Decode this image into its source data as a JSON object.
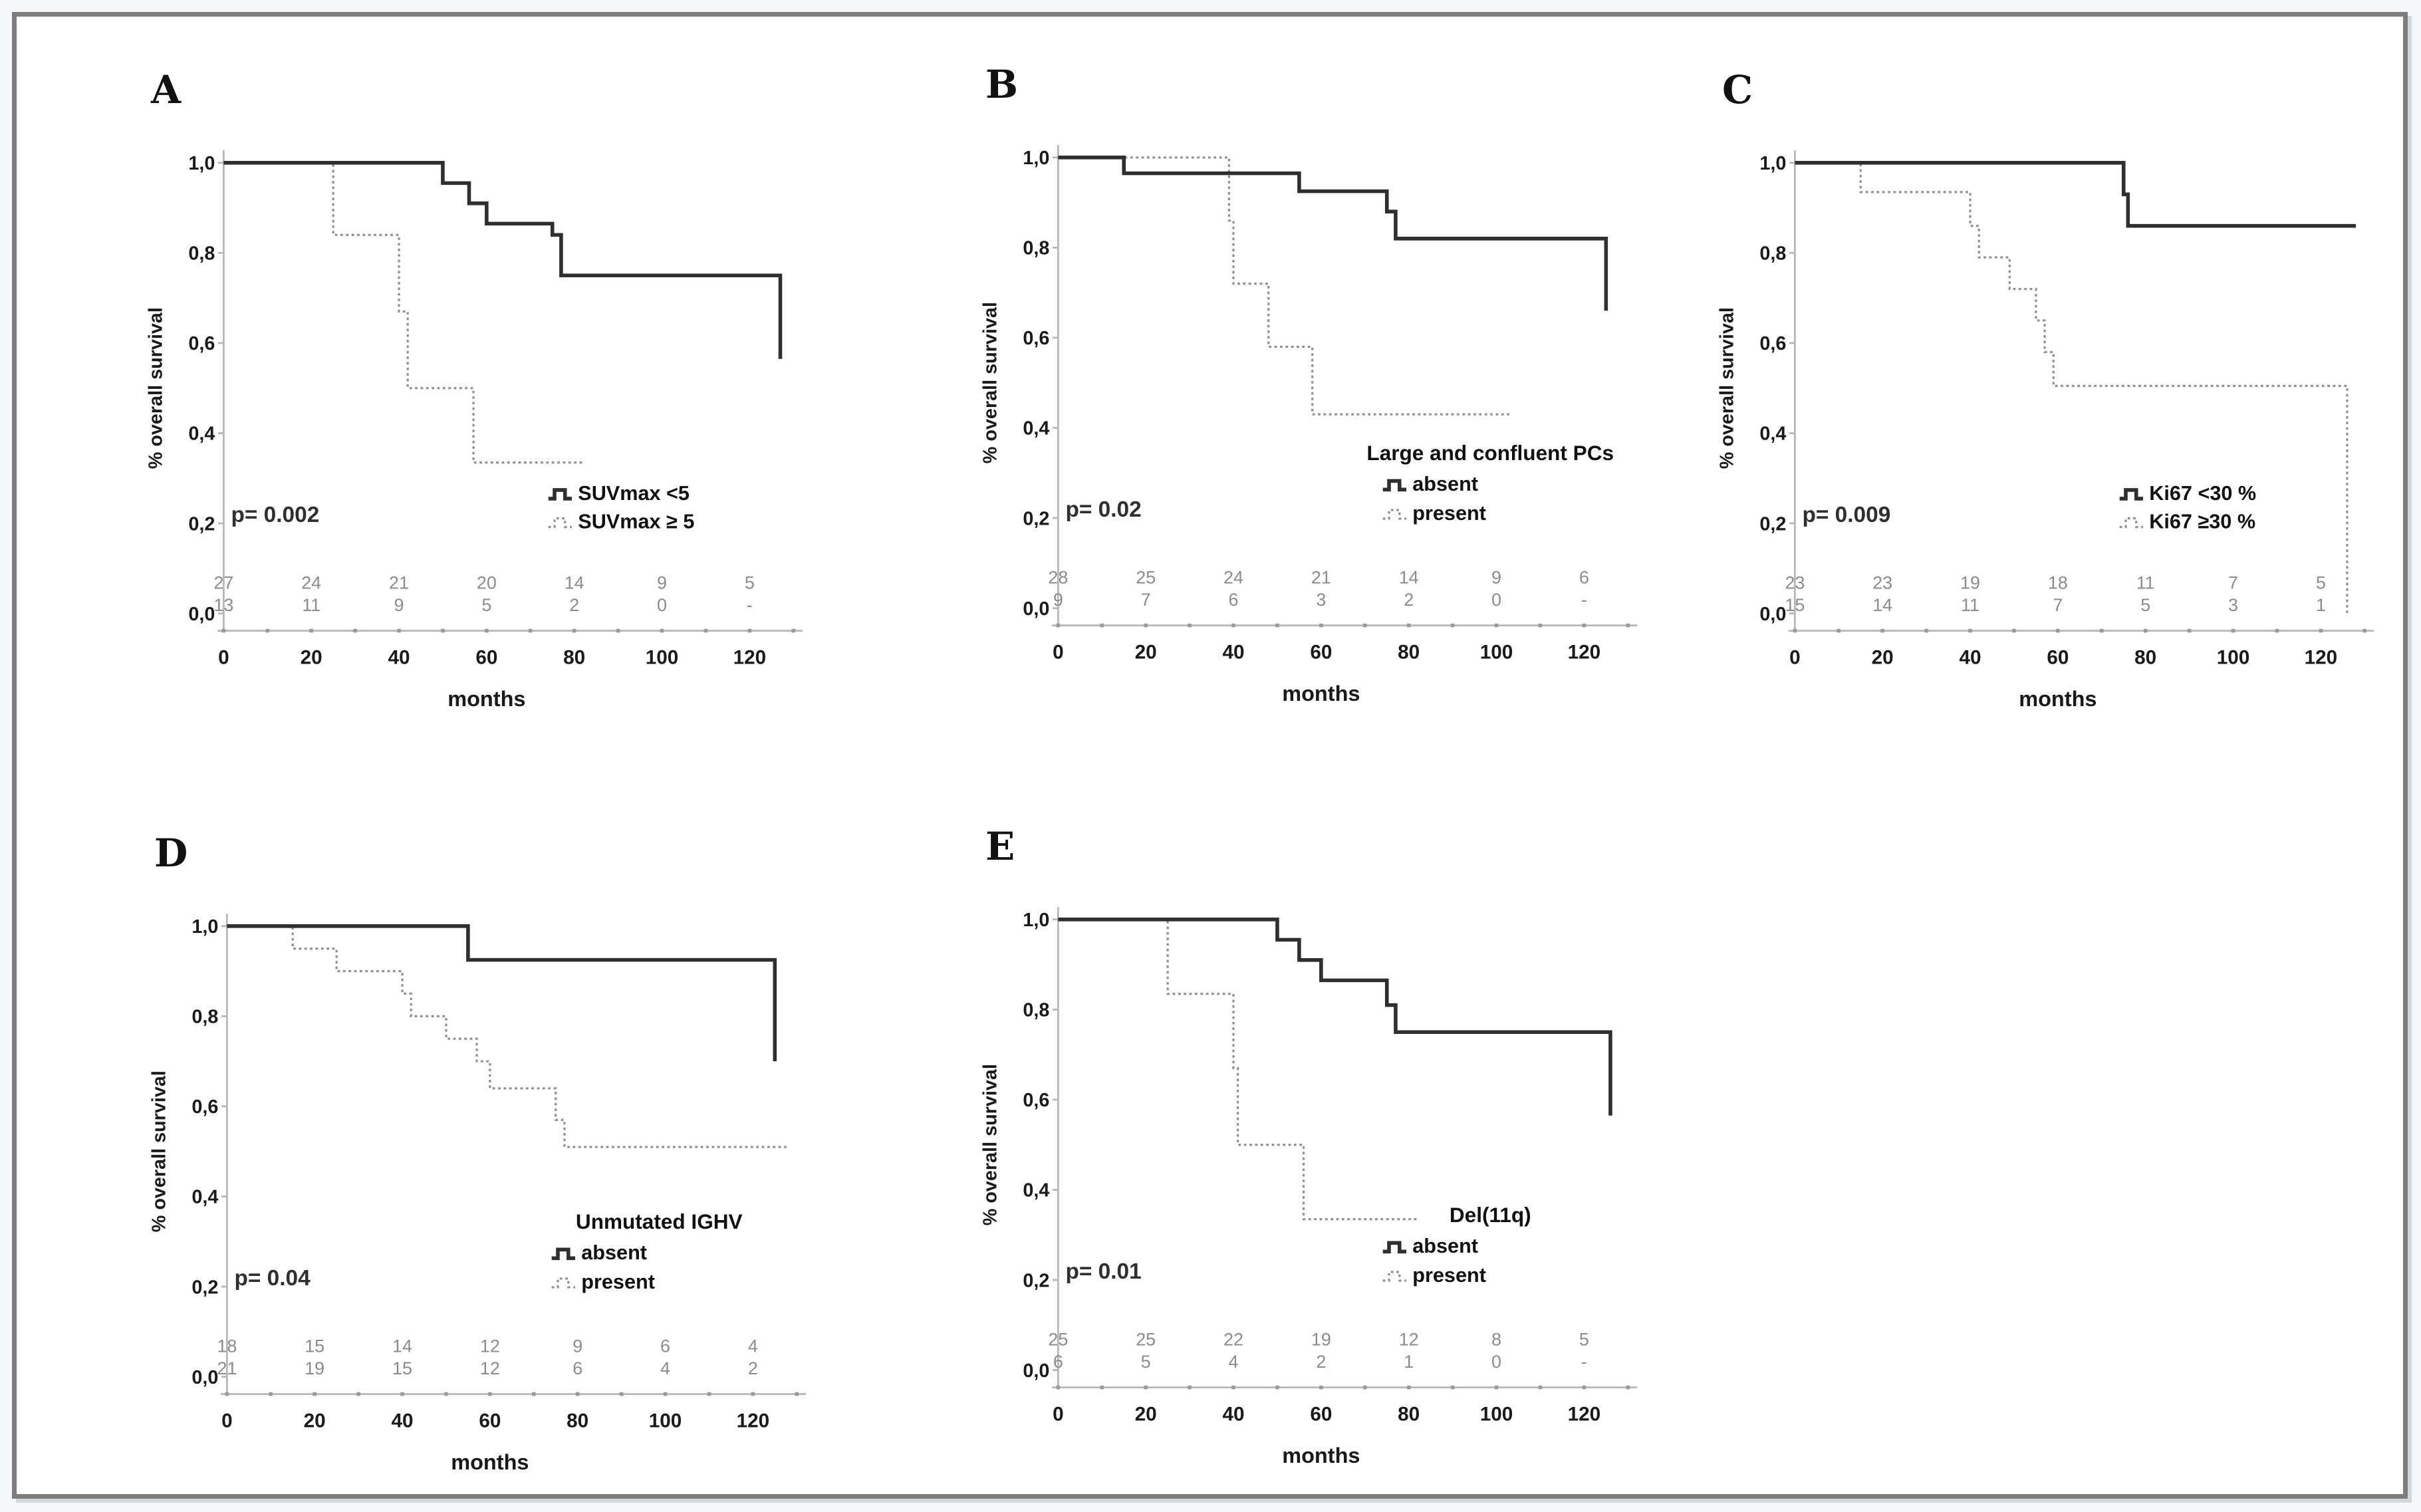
{
  "figure": {
    "description": "Five Kaplan-Meier overall survival plots labelled A to E",
    "x_axis_title": "months",
    "y_axis_title": "% overall survival"
  },
  "colors": {
    "curve_solid": "#2f2f2f",
    "curve_dotted": "#8f8f8f",
    "axis": "#b7b7b7",
    "minor_tick": "#9a9a9a",
    "tick_label": "#1a1a1a",
    "at_risk_text": "#8c8c8c",
    "p_value_text": "#2f2f2f",
    "legend_text": "#111111",
    "frame_border": "#7d7d7d",
    "page_bg": "#f5f6f8",
    "panel_bg": "#ffffff"
  },
  "chart_data": [
    {
      "id": "A",
      "type": "line",
      "subtype": "kaplan-meier-step",
      "xlabel": "months",
      "ylabel": "% overall survival",
      "xlim": [
        0,
        130
      ],
      "ylim": [
        0.0,
        1.0
      ],
      "xticks": [
        0,
        20,
        40,
        60,
        80,
        100,
        120
      ],
      "ytick_labels": [
        "1,0",
        "0,8",
        "0,6",
        "0,4",
        "0,2",
        "0,0"
      ],
      "p_value": "p= 0.002",
      "legend": {
        "title": "",
        "entries": [
          {
            "label": "SUVmax <5",
            "style": "solid"
          },
          {
            "label": "SUVmax ≥ 5",
            "style": "dotted"
          }
        ]
      },
      "series": [
        {
          "name": "SUVmax <5",
          "style": "solid",
          "steps": [
            [
              0,
              1.0
            ],
            [
              50,
              0.955
            ],
            [
              56,
              0.91
            ],
            [
              60,
              0.865
            ],
            [
              75,
              0.84
            ],
            [
              77,
              0.75
            ],
            [
              127,
              0.565
            ]
          ],
          "end": 127
        },
        {
          "name": "SUVmax ≥ 5",
          "style": "dotted",
          "steps": [
            [
              0,
              1.0
            ],
            [
              25,
              0.84
            ],
            [
              40,
              0.67
            ],
            [
              42,
              0.5
            ],
            [
              57,
              0.335
            ]
          ],
          "end": 82
        }
      ],
      "at_risk": [
        [
          27,
          24,
          21,
          20,
          14,
          9,
          5
        ],
        [
          13,
          11,
          9,
          5,
          2,
          0,
          "-"
        ]
      ]
    },
    {
      "id": "B",
      "type": "line",
      "subtype": "kaplan-meier-step",
      "xlabel": "months",
      "ylabel": "% overall survival",
      "xlim": [
        0,
        130
      ],
      "ylim": [
        0.0,
        1.0
      ],
      "xticks": [
        0,
        20,
        40,
        60,
        80,
        100,
        120
      ],
      "ytick_labels": [
        "1,0",
        "0,8",
        "0,6",
        "0,4",
        "0,2",
        "0,0"
      ],
      "p_value": "p= 0.02",
      "legend": {
        "title": "Large and confluent PCs",
        "entries": [
          {
            "label": "absent",
            "style": "solid"
          },
          {
            "label": "present",
            "style": "dotted"
          }
        ]
      },
      "series": [
        {
          "name": "absent",
          "style": "solid",
          "steps": [
            [
              0,
              1.0
            ],
            [
              15,
              0.965
            ],
            [
              55,
              0.925
            ],
            [
              75,
              0.88
            ],
            [
              77,
              0.82
            ],
            [
              125,
              0.66
            ]
          ],
          "end": 125
        },
        {
          "name": "present",
          "style": "dotted",
          "steps": [
            [
              0,
              1.0
            ],
            [
              39,
              0.86
            ],
            [
              40,
              0.72
            ],
            [
              48,
              0.58
            ],
            [
              58,
              0.43
            ]
          ],
          "end": 103
        }
      ],
      "at_risk": [
        [
          28,
          25,
          24,
          21,
          14,
          9,
          6
        ],
        [
          9,
          7,
          6,
          3,
          2,
          0,
          "-"
        ]
      ]
    },
    {
      "id": "C",
      "type": "line",
      "subtype": "kaplan-meier-step",
      "xlabel": "months",
      "ylabel": "% overall survival",
      "xlim": [
        0,
        130
      ],
      "ylim": [
        0.0,
        1.0
      ],
      "xticks": [
        0,
        20,
        40,
        60,
        80,
        100,
        120
      ],
      "ytick_labels": [
        "1,0",
        "0,8",
        "0,6",
        "0,4",
        "0,2",
        "0,0"
      ],
      "p_value": "p= 0.009",
      "legend": {
        "title": "",
        "entries": [
          {
            "label": "Ki67 <30 %",
            "style": "solid"
          },
          {
            "label": "Ki67 ≥30 %",
            "style": "dotted"
          }
        ]
      },
      "series": [
        {
          "name": "Ki67 <30 %",
          "style": "solid",
          "steps": [
            [
              0,
              1.0
            ],
            [
              75,
              0.93
            ],
            [
              76,
              0.86
            ]
          ],
          "end": 128
        },
        {
          "name": "Ki67 ≥30 %",
          "style": "dotted",
          "steps": [
            [
              0,
              1.0
            ],
            [
              15,
              0.935
            ],
            [
              40,
              0.86
            ],
            [
              42,
              0.79
            ],
            [
              49,
              0.72
            ],
            [
              55,
              0.65
            ],
            [
              57,
              0.58
            ],
            [
              59,
              0.505
            ],
            [
              126,
              0.0
            ]
          ],
          "end": 126
        }
      ],
      "at_risk": [
        [
          23,
          23,
          19,
          18,
          11,
          7,
          5
        ],
        [
          15,
          14,
          11,
          7,
          5,
          3,
          1
        ]
      ]
    },
    {
      "id": "D",
      "type": "line",
      "subtype": "kaplan-meier-step",
      "xlabel": "months",
      "ylabel": "% overall survival",
      "xlim": [
        0,
        130
      ],
      "ylim": [
        0.0,
        1.0
      ],
      "xticks": [
        0,
        20,
        40,
        60,
        80,
        100,
        120
      ],
      "ytick_labels": [
        "1,0",
        "0,8",
        "0,6",
        "0,4",
        "0,2",
        "0,0"
      ],
      "p_value": "p= 0.04",
      "legend": {
        "title": "Unmutated IGHV",
        "entries": [
          {
            "label": "absent",
            "style": "solid"
          },
          {
            "label": "present",
            "style": "dotted"
          }
        ]
      },
      "series": [
        {
          "name": "absent",
          "style": "solid",
          "steps": [
            [
              0,
              1.0
            ],
            [
              55,
              0.925
            ],
            [
              125,
              0.7
            ]
          ],
          "end": 125
        },
        {
          "name": "present",
          "style": "dotted",
          "steps": [
            [
              0,
              1.0
            ],
            [
              15,
              0.95
            ],
            [
              25,
              0.9
            ],
            [
              40,
              0.85
            ],
            [
              42,
              0.8
            ],
            [
              50,
              0.75
            ],
            [
              57,
              0.7
            ],
            [
              60,
              0.64
            ],
            [
              75,
              0.57
            ],
            [
              77,
              0.51
            ]
          ],
          "end": 128
        }
      ],
      "at_risk": [
        [
          18,
          15,
          14,
          12,
          9,
          6,
          4
        ],
        [
          21,
          19,
          15,
          12,
          6,
          4,
          2
        ]
      ]
    },
    {
      "id": "E",
      "type": "line",
      "subtype": "kaplan-meier-step",
      "xlabel": "months",
      "ylabel": "% overall survival",
      "xlim": [
        0,
        130
      ],
      "ylim": [
        0.0,
        1.0
      ],
      "xticks": [
        0,
        20,
        40,
        60,
        80,
        100,
        120
      ],
      "ytick_labels": [
        "1,0",
        "0,8",
        "0,6",
        "0,4",
        "0,2",
        "0,0"
      ],
      "p_value": "p= 0.01",
      "legend": {
        "title": "Del(11q)",
        "entries": [
          {
            "label": "absent",
            "style": "solid"
          },
          {
            "label": "present",
            "style": "dotted"
          }
        ]
      },
      "series": [
        {
          "name": "absent",
          "style": "solid",
          "steps": [
            [
              0,
              1.0
            ],
            [
              50,
              0.955
            ],
            [
              55,
              0.91
            ],
            [
              60,
              0.865
            ],
            [
              75,
              0.81
            ],
            [
              77,
              0.75
            ],
            [
              126,
              0.565
            ]
          ],
          "end": 126
        },
        {
          "name": "present",
          "style": "dotted",
          "steps": [
            [
              0,
              1.0
            ],
            [
              25,
              0.835
            ],
            [
              40,
              0.67
            ],
            [
              41,
              0.5
            ],
            [
              56,
              0.335
            ]
          ],
          "end": 82
        }
      ],
      "at_risk": [
        [
          25,
          25,
          22,
          19,
          12,
          8,
          5
        ],
        [
          6,
          5,
          4,
          2,
          1,
          0,
          "-"
        ]
      ]
    }
  ]
}
